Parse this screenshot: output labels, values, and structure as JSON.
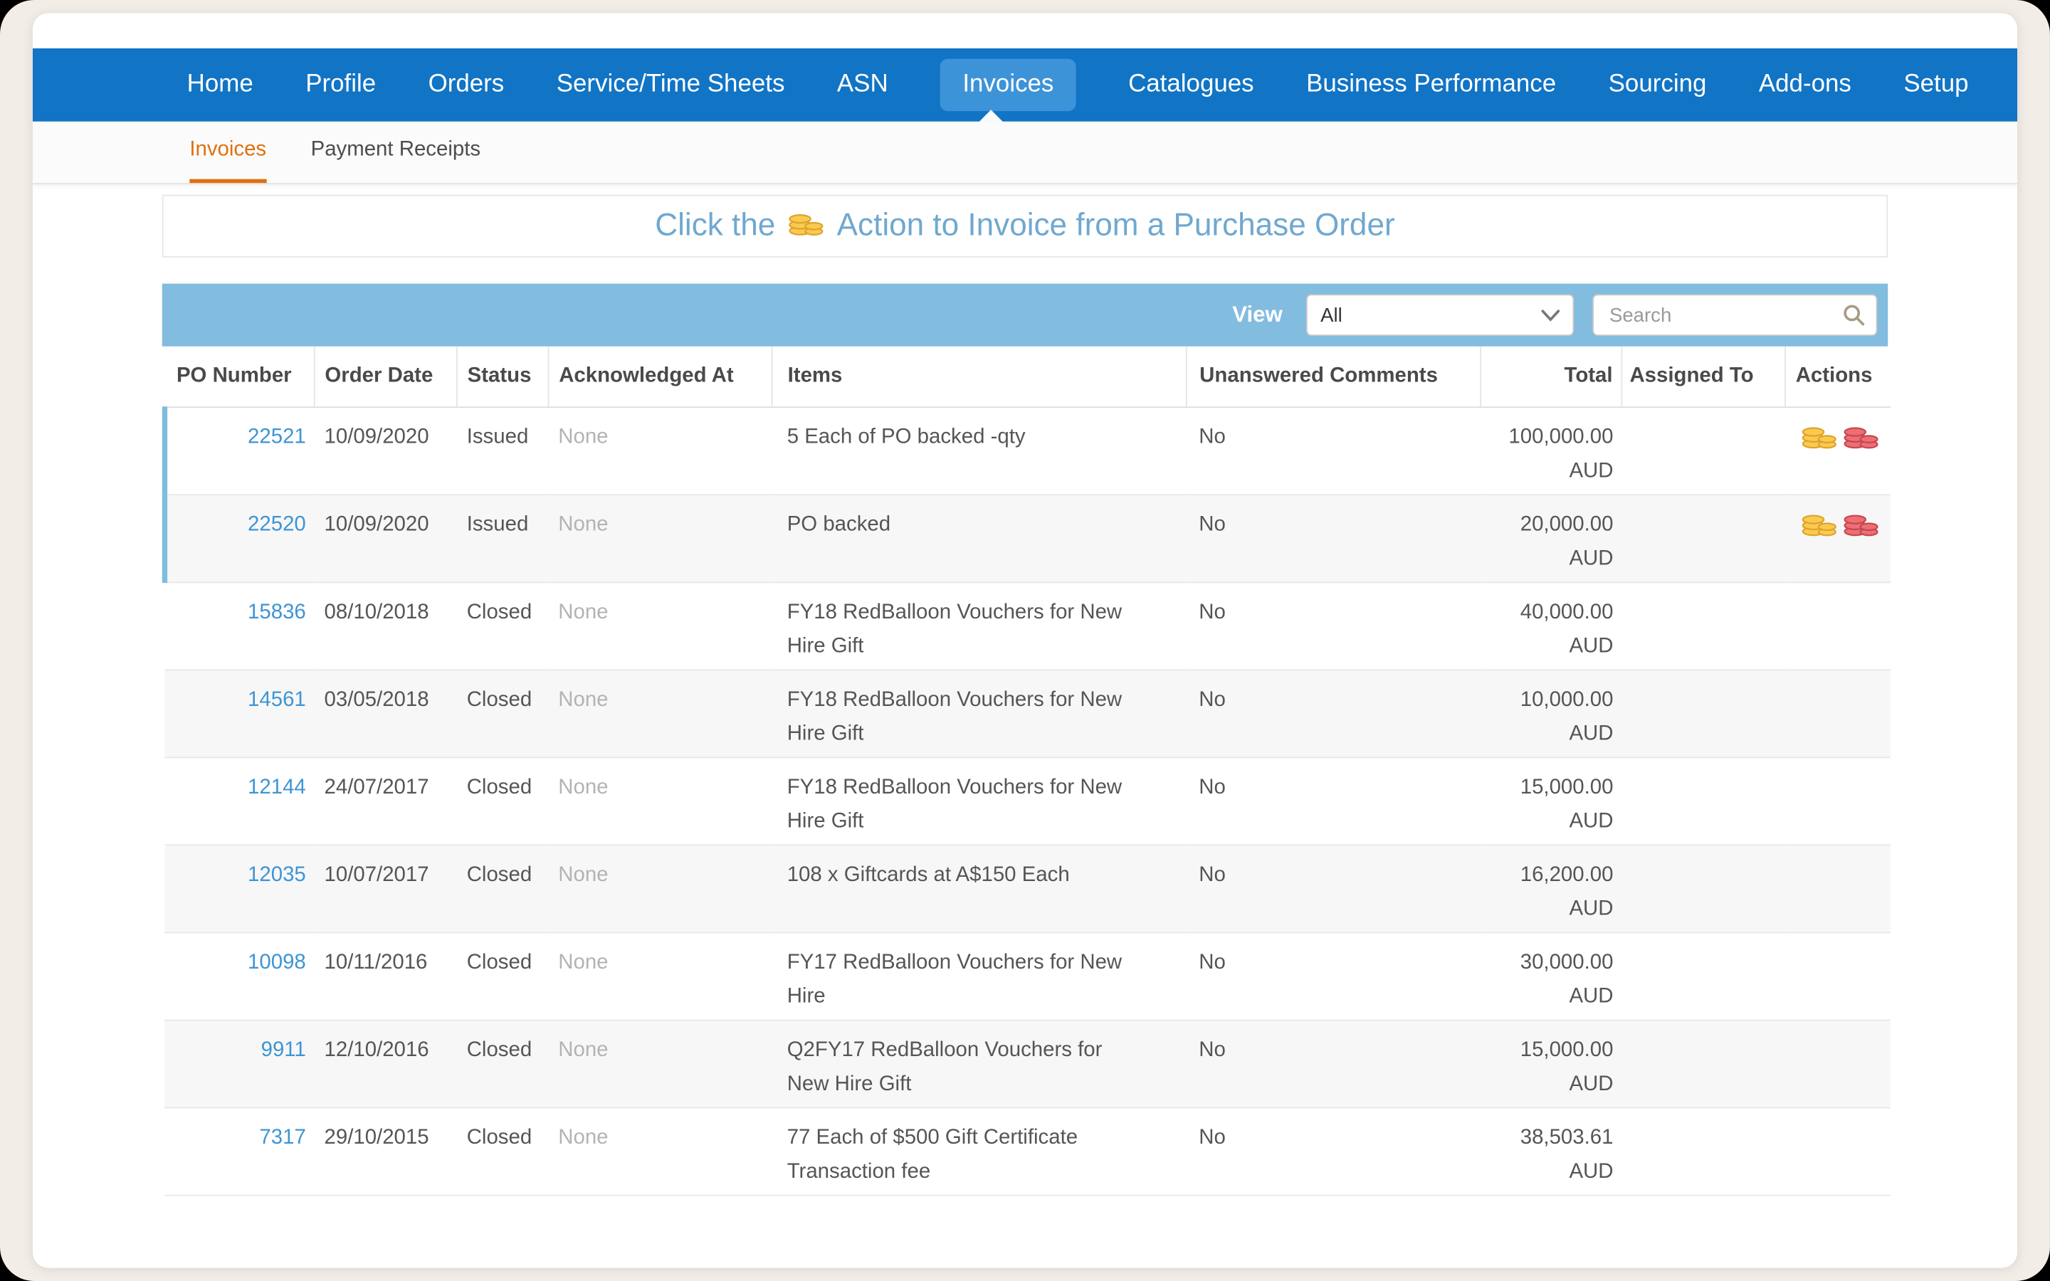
{
  "nav": {
    "items": [
      {
        "label": "Home",
        "active": false
      },
      {
        "label": "Profile",
        "active": false
      },
      {
        "label": "Orders",
        "active": false
      },
      {
        "label": "Service/Time Sheets",
        "active": false
      },
      {
        "label": "ASN",
        "active": false
      },
      {
        "label": "Invoices",
        "active": true
      },
      {
        "label": "Catalogues",
        "active": false
      },
      {
        "label": "Business Performance",
        "active": false
      },
      {
        "label": "Sourcing",
        "active": false
      },
      {
        "label": "Add-ons",
        "active": false
      },
      {
        "label": "Setup",
        "active": false
      }
    ]
  },
  "subnav": {
    "items": [
      {
        "label": "Invoices",
        "active": true
      },
      {
        "label": "Payment Receipts",
        "active": false
      }
    ]
  },
  "banner": {
    "text_before": "Click the",
    "icon": "gold_coins",
    "text_after": "Action to Invoice from a Purchase Order"
  },
  "controls": {
    "view_label": "View",
    "view_value": "All",
    "search_placeholder": "Search"
  },
  "table": {
    "columns": [
      "PO Number",
      "Order Date",
      "Status",
      "Acknowledged At",
      "Items",
      "Unanswered Comments",
      "Total",
      "Assigned To",
      "Actions"
    ],
    "rows": [
      {
        "po_number": "22521",
        "order_date": "10/09/2020",
        "status": "Issued",
        "acknowledged_at": "None",
        "items": "5 Each of PO backed -qty",
        "unanswered_comments": "No",
        "total": "100,000.00",
        "currency": "AUD",
        "assigned_to": "",
        "actions": [
          "gold_coins",
          "red_coins"
        ],
        "highlight": true
      },
      {
        "po_number": "22520",
        "order_date": "10/09/2020",
        "status": "Issued",
        "acknowledged_at": "None",
        "items": "PO backed",
        "unanswered_comments": "No",
        "total": "20,000.00",
        "currency": "AUD",
        "assigned_to": "",
        "actions": [
          "gold_coins",
          "red_coins"
        ],
        "highlight": true
      },
      {
        "po_number": "15836",
        "order_date": "08/10/2018",
        "status": "Closed",
        "acknowledged_at": "None",
        "items": "FY18 RedBalloon Vouchers for New Hire Gift",
        "unanswered_comments": "No",
        "total": "40,000.00",
        "currency": "AUD",
        "assigned_to": "",
        "actions": [],
        "highlight": false
      },
      {
        "po_number": "14561",
        "order_date": "03/05/2018",
        "status": "Closed",
        "acknowledged_at": "None",
        "items": "FY18 RedBalloon Vouchers for New Hire Gift",
        "unanswered_comments": "No",
        "total": "10,000.00",
        "currency": "AUD",
        "assigned_to": "",
        "actions": [],
        "highlight": false
      },
      {
        "po_number": "12144",
        "order_date": "24/07/2017",
        "status": "Closed",
        "acknowledged_at": "None",
        "items": "FY18 RedBalloon Vouchers for New Hire Gift",
        "unanswered_comments": "No",
        "total": "15,000.00",
        "currency": "AUD",
        "assigned_to": "",
        "actions": [],
        "highlight": false
      },
      {
        "po_number": "12035",
        "order_date": "10/07/2017",
        "status": "Closed",
        "acknowledged_at": "None",
        "items": "108 x Giftcards at A$150 Each",
        "unanswered_comments": "No",
        "total": "16,200.00",
        "currency": "AUD",
        "assigned_to": "",
        "actions": [],
        "highlight": false
      },
      {
        "po_number": "10098",
        "order_date": "10/11/2016",
        "status": "Closed",
        "acknowledged_at": "None",
        "items": "FY17 RedBalloon Vouchers for New Hire",
        "unanswered_comments": "No",
        "total": "30,000.00",
        "currency": "AUD",
        "assigned_to": "",
        "actions": [],
        "highlight": false
      },
      {
        "po_number": "9911",
        "order_date": "12/10/2016",
        "status": "Closed",
        "acknowledged_at": "None",
        "items": "Q2FY17 RedBalloon Vouchers for New Hire Gift",
        "unanswered_comments": "No",
        "total": "15,000.00",
        "currency": "AUD",
        "assigned_to": "",
        "actions": [],
        "highlight": false
      },
      {
        "po_number": "7317",
        "order_date": "29/10/2015",
        "status": "Closed",
        "acknowledged_at": "None",
        "items": "77 Each of $500 Gift Certificate Transaction fee",
        "unanswered_comments": "No",
        "total": "38,503.61",
        "currency": "AUD",
        "assigned_to": "",
        "actions": [],
        "highlight": false
      }
    ]
  },
  "icons": {
    "gold_coins": {
      "fill": "#f9ca4f",
      "stroke": "#dfa32b"
    },
    "red_coins": {
      "fill": "#ee6e76",
      "stroke": "#c5484e"
    },
    "search": "magnifier",
    "view_select": "chevron-down"
  },
  "colors": {
    "nav_bar": "#1174c5",
    "nav_active": "#3d93d8",
    "subnav_active": "#e0700f",
    "toolbar": "#82bcdf",
    "banner_text": "#6fa8d0",
    "link": "#3d95d5",
    "highlight_bar": "#7fbcdf"
  }
}
